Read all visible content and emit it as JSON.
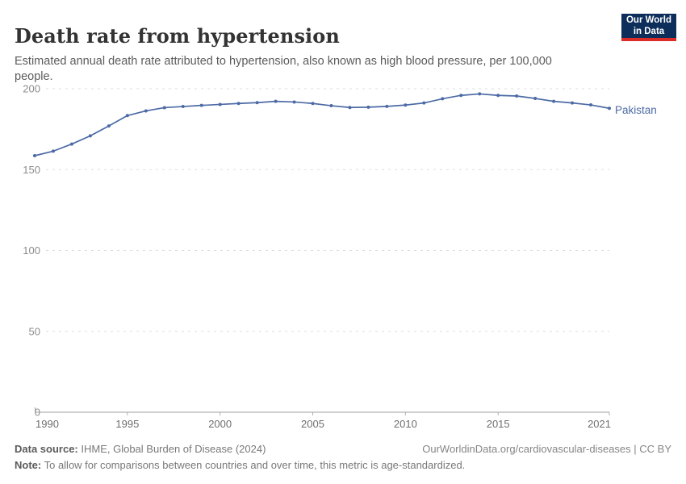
{
  "header": {
    "title": "Death rate from hypertension",
    "subtitle": "Estimated annual death rate attributed to hypertension, also known as high blood pressure, per 100,000 people.",
    "logo_line1": "Our World",
    "logo_line2": "in Data"
  },
  "chart_data": {
    "type": "line",
    "title": "Death rate from hypertension",
    "xlabel": "",
    "ylabel": "",
    "xlim": [
      1990,
      2021
    ],
    "ylim": [
      0,
      200
    ],
    "x_ticks": [
      1990,
      1995,
      2000,
      2005,
      2010,
      2015,
      2021
    ],
    "y_ticks": [
      0,
      50,
      100,
      150,
      200
    ],
    "grid": "horizontal-dashed",
    "legend_position": "right-end-of-line",
    "x": [
      1990,
      1991,
      1992,
      1993,
      1994,
      1995,
      1996,
      1997,
      1998,
      1999,
      2000,
      2001,
      2002,
      2003,
      2004,
      2005,
      2006,
      2007,
      2008,
      2009,
      2010,
      2011,
      2012,
      2013,
      2014,
      2015,
      2016,
      2017,
      2018,
      2019,
      2020,
      2021
    ],
    "series": [
      {
        "name": "Pakistan",
        "color": "#4c6aa5",
        "values": [
          158.6,
          161.4,
          165.8,
          170.9,
          177.0,
          183.4,
          186.3,
          188.3,
          189.0,
          189.7,
          190.3,
          190.9,
          191.4,
          192.2,
          191.8,
          190.9,
          189.5,
          188.4,
          188.6,
          189.1,
          189.9,
          191.2,
          193.8,
          195.9,
          196.8,
          195.9,
          195.5,
          194.0,
          192.2,
          191.2,
          190.0,
          187.9
        ]
      }
    ]
  },
  "footer": {
    "datasource_label": "Data source:",
    "datasource_value": " IHME, Global Burden of Disease (2024)",
    "attribution": "OurWorldinData.org/cardiovascular-diseases | CC BY",
    "note_label": "Note:",
    "note_value": " To allow for comparisons between countries and over time, this metric is age-standardized."
  },
  "colors": {
    "line": "#4c6aa5",
    "gridline": "#dddddd",
    "axis": "#a0a0a0",
    "tick": "#b0b0b0",
    "y_tick_label": "#8c8c8c",
    "x_tick_label": "#6e6e6e",
    "logo_bg": "#0d2d5a",
    "logo_underline": "#dc2c27"
  }
}
